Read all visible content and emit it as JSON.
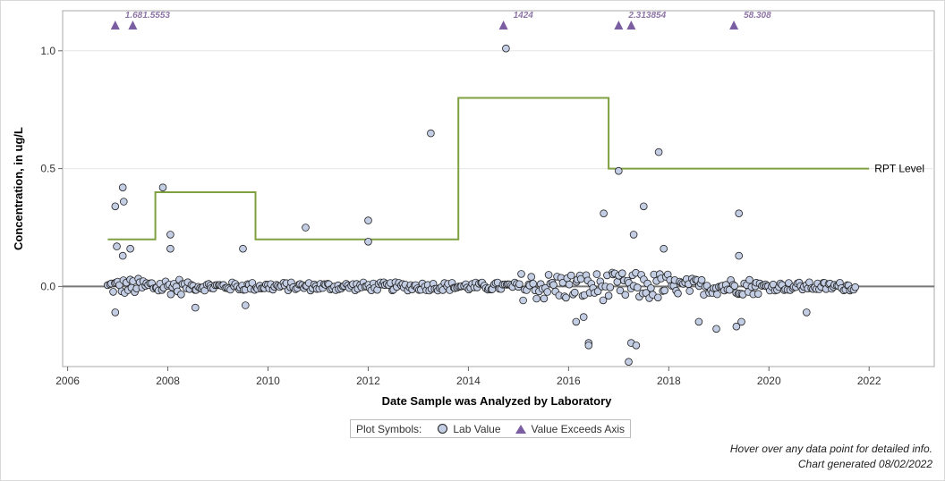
{
  "chart_data": {
    "type": "scatter",
    "xlabel": "Date Sample was Analyzed by Laboratory",
    "ylabel": "Concentration, in ug/L",
    "xlim": [
      2005.9,
      2023.3
    ],
    "ylim": [
      -0.34,
      1.17
    ],
    "x_ticks": [
      2006,
      2008,
      2010,
      2012,
      2014,
      2016,
      2018,
      2020,
      2022
    ],
    "y_ticks": [
      0.0,
      0.5,
      1.0
    ],
    "y_tick_labels": [
      "0.0",
      "0.5",
      "1.0"
    ],
    "zero_line": 0,
    "grid": "horizontal",
    "reference_line": {
      "label": "RPT Level",
      "steps": [
        [
          2006.8,
          0.2
        ],
        [
          2007.75,
          0.2
        ],
        [
          2007.75,
          0.4
        ],
        [
          2009.75,
          0.4
        ],
        [
          2009.75,
          0.2
        ],
        [
          2013.8,
          0.2
        ],
        [
          2013.8,
          0.8
        ],
        [
          2016.8,
          0.8
        ],
        [
          2016.8,
          0.5
        ],
        [
          2022.0,
          0.5
        ]
      ],
      "color": "#7fa040"
    },
    "exceeds_axis": [
      {
        "x": 2006.95,
        "label": "1.68"
      },
      {
        "x": 2007.3,
        "label": "1.5553"
      },
      {
        "x": 2014.7,
        "label": "1424"
      },
      {
        "x": 2017.0,
        "label": "2.3"
      },
      {
        "x": 2017.25,
        "label": "13854"
      },
      {
        "x": 2019.3,
        "label": "58.308"
      }
    ],
    "notable_points": [
      {
        "x": 2006.95,
        "y": -0.11
      },
      {
        "x": 2006.95,
        "y": 0.34
      },
      {
        "x": 2006.98,
        "y": 0.17
      },
      {
        "x": 2007.1,
        "y": 0.42
      },
      {
        "x": 2007.12,
        "y": 0.36
      },
      {
        "x": 2007.1,
        "y": 0.13
      },
      {
        "x": 2007.25,
        "y": 0.16
      },
      {
        "x": 2007.9,
        "y": 0.42
      },
      {
        "x": 2008.05,
        "y": 0.22
      },
      {
        "x": 2008.05,
        "y": 0.16
      },
      {
        "x": 2009.5,
        "y": 0.16
      },
      {
        "x": 2010.75,
        "y": 0.25
      },
      {
        "x": 2012.0,
        "y": 0.28
      },
      {
        "x": 2012.0,
        "y": 0.19
      },
      {
        "x": 2013.25,
        "y": 0.65
      },
      {
        "x": 2014.75,
        "y": 1.01
      },
      {
        "x": 2016.7,
        "y": 0.31
      },
      {
        "x": 2017.0,
        "y": 0.49
      },
      {
        "x": 2017.5,
        "y": 0.34
      },
      {
        "x": 2017.3,
        "y": 0.22
      },
      {
        "x": 2017.8,
        "y": 0.57
      },
      {
        "x": 2017.9,
        "y": 0.16
      },
      {
        "x": 2019.4,
        "y": 0.31
      },
      {
        "x": 2019.4,
        "y": 0.13
      },
      {
        "x": 2017.2,
        "y": -0.32
      },
      {
        "x": 2017.25,
        "y": -0.24
      },
      {
        "x": 2017.35,
        "y": -0.25
      },
      {
        "x": 2016.4,
        "y": -0.24
      },
      {
        "x": 2016.4,
        "y": -0.25
      },
      {
        "x": 2018.6,
        "y": -0.15
      },
      {
        "x": 2018.95,
        "y": -0.18
      },
      {
        "x": 2019.35,
        "y": -0.17
      },
      {
        "x": 2019.45,
        "y": -0.15
      },
      {
        "x": 2008.55,
        "y": -0.09
      },
      {
        "x": 2009.55,
        "y": -0.08
      },
      {
        "x": 2016.15,
        "y": -0.15
      },
      {
        "x": 2016.3,
        "y": -0.13
      },
      {
        "x": 2020.75,
        "y": -0.11
      }
    ],
    "legend": {
      "title": "Plot Symbols:",
      "items": [
        "Lab Value",
        "Value Exceeds Axis"
      ],
      "placement": "bottom-center"
    },
    "marker_fill": "#c3cde3",
    "exceed_color": "#7b5ea1"
  },
  "footer": {
    "hover_note": "Hover over any data point for detailed info.",
    "generated": "Chart generated 08/02/2022"
  }
}
